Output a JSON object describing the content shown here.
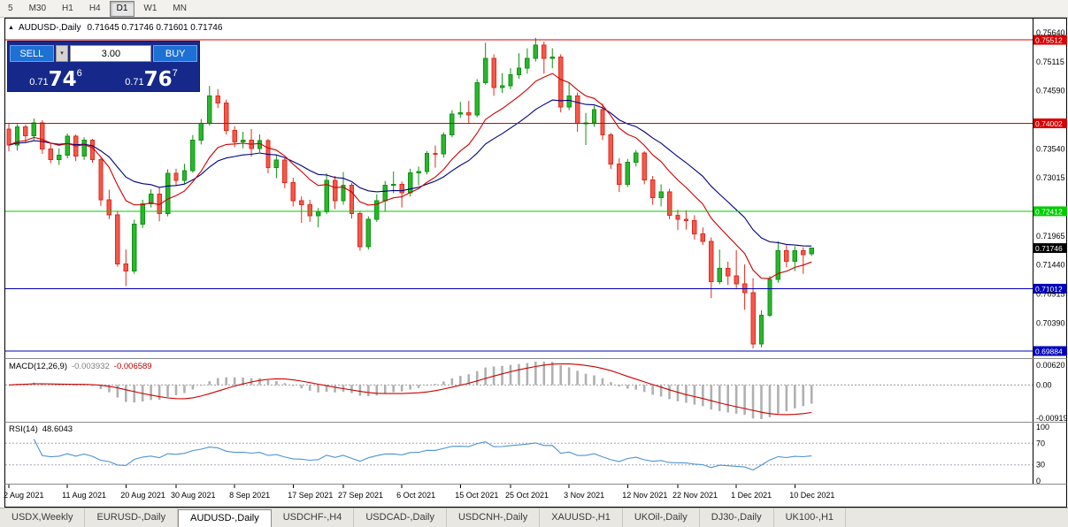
{
  "colors": {
    "up": "#0f9413",
    "up_fill": "#2cb52f",
    "down": "#dd2c1f",
    "down_fill": "#f4594d",
    "ma_fast": "#cc0000",
    "ma_slow": "#000080",
    "line_red": "#d80000",
    "line_green": "#00cc00",
    "line_blue": "#0000bb",
    "tag_black": "#000000",
    "macd_hist": "#b0b0b0",
    "macd_signal": "#cc0000",
    "rsi_line": "#4f93d2",
    "panel_blue": "#16298a",
    "button_blue": "#1d70d4"
  },
  "toolbar": {
    "timeframes": [
      "5",
      "M30",
      "H1",
      "H4",
      "D1",
      "W1",
      "MN"
    ],
    "active": "D1"
  },
  "chart": {
    "collapse_icon": "▲",
    "symbol_label": "AUDUSD-,Daily",
    "ohlc": "0.71645 0.71746 0.71601 0.71746"
  },
  "trade_panel": {
    "sell_label": "SELL",
    "buy_label": "BUY",
    "volume": "3.00",
    "dropdown_icon": "▾",
    "sell_price": {
      "prefix": "0.71",
      "big": "74",
      "sup": "6"
    },
    "buy_price": {
      "prefix": "0.71",
      "big": "76",
      "sup": "7"
    }
  },
  "price_axis": {
    "labels": [
      "0.75640",
      "0.75115",
      "0.74590",
      "0.73540",
      "0.73015",
      "0.71965",
      "0.71440",
      "0.70915",
      "0.70390"
    ]
  },
  "hlines": [
    {
      "price": 0.75512,
      "label": "0.75512",
      "color": "red"
    },
    {
      "price": 0.74002,
      "label": "0.74002",
      "color": "red"
    },
    {
      "price": 0.72412,
      "label": "0.72412",
      "color": "green"
    },
    {
      "price": 0.71012,
      "label": "0.71012",
      "color": "blue"
    },
    {
      "price": 0.69884,
      "label": "0.69884",
      "color": "blue"
    }
  ],
  "current_price_tag": {
    "price": 0.71746,
    "label": "0.71746"
  },
  "macd_panel": {
    "name": "MACD(12,26,9)",
    "value_main": "-0.003932",
    "value_signal": "-0.006589",
    "axis_top": "0.00620",
    "axis_zero": "0.00",
    "axis_bottom": "-0.00919"
  },
  "rsi_panel": {
    "name": "RSI(14)",
    "value": "48.6043",
    "axis": [
      "100",
      "70",
      "30",
      "0"
    ],
    "levels": [
      70,
      30
    ]
  },
  "date_axis": [
    {
      "label": "2 Aug 2021",
      "index": 0
    },
    {
      "label": "11 Aug 2021",
      "index": 7
    },
    {
      "label": "20 Aug 2021",
      "index": 14
    },
    {
      "label": "30 Aug 2021",
      "index": 20
    },
    {
      "label": "8 Sep 2021",
      "index": 27
    },
    {
      "label": "17 Sep 2021",
      "index": 34
    },
    {
      "label": "27 Sep 2021",
      "index": 40
    },
    {
      "label": "6 Oct 2021",
      "index": 47
    },
    {
      "label": "15 Oct 2021",
      "index": 54
    },
    {
      "label": "25 Oct 2021",
      "index": 60
    },
    {
      "label": "3 Nov 2021",
      "index": 67
    },
    {
      "label": "12 Nov 2021",
      "index": 74
    },
    {
      "label": "22 Nov 2021",
      "index": 80
    },
    {
      "label": "1 Dec 2021",
      "index": 87
    },
    {
      "label": "10 Dec 2021",
      "index": 94
    }
  ],
  "bottom_tabs": {
    "active": "AUDUSD-,Daily",
    "tabs": [
      "USDX,Weekly",
      "EURUSD-,Daily",
      "AUDUSD-,Daily",
      "USDCHF-,H4",
      "USDCAD-,Daily",
      "USDCNH-,Daily",
      "XAUUSD-,H1",
      "UKOil-,Daily",
      "DJ30-,Daily",
      "UK100-,H1"
    ]
  },
  "chart_data": {
    "type": "candlestick",
    "title": "AUDUSD-,Daily",
    "ylim": [
      0.69772,
      0.75785
    ],
    "ohlc": [
      [
        0.739,
        0.74,
        0.735,
        0.7361
      ],
      [
        0.7361,
        0.7399,
        0.7351,
        0.7394
      ],
      [
        0.7394,
        0.7398,
        0.7365,
        0.7378
      ],
      [
        0.7378,
        0.7409,
        0.737,
        0.7401
      ],
      [
        0.7401,
        0.7406,
        0.7345,
        0.7354
      ],
      [
        0.7354,
        0.7364,
        0.7328,
        0.7335
      ],
      [
        0.7335,
        0.7355,
        0.7325,
        0.7343
      ],
      [
        0.7343,
        0.7382,
        0.7337,
        0.7377
      ],
      [
        0.7377,
        0.738,
        0.7332,
        0.7341
      ],
      [
        0.7341,
        0.7375,
        0.7334,
        0.737
      ],
      [
        0.737,
        0.7372,
        0.7329,
        0.7335
      ],
      [
        0.7335,
        0.7338,
        0.7251,
        0.7262
      ],
      [
        0.7262,
        0.728,
        0.7227,
        0.7235
      ],
      [
        0.7235,
        0.7242,
        0.7141,
        0.7146
      ],
      [
        0.7146,
        0.7172,
        0.7106,
        0.7133
      ],
      [
        0.7133,
        0.7226,
        0.7128,
        0.7218
      ],
      [
        0.7218,
        0.7262,
        0.7211,
        0.7255
      ],
      [
        0.7255,
        0.7281,
        0.7248,
        0.7272
      ],
      [
        0.7272,
        0.7284,
        0.7223,
        0.7237
      ],
      [
        0.7237,
        0.7317,
        0.7232,
        0.731
      ],
      [
        0.731,
        0.7318,
        0.7288,
        0.7297
      ],
      [
        0.7297,
        0.7327,
        0.7291,
        0.7315
      ],
      [
        0.7315,
        0.7379,
        0.7311,
        0.737
      ],
      [
        0.737,
        0.7408,
        0.7362,
        0.74
      ],
      [
        0.74,
        0.7468,
        0.7396,
        0.745
      ],
      [
        0.745,
        0.7462,
        0.7428,
        0.7437
      ],
      [
        0.7437,
        0.7443,
        0.738,
        0.7387
      ],
      [
        0.7387,
        0.7395,
        0.7357,
        0.7367
      ],
      [
        0.7367,
        0.7385,
        0.7355,
        0.737
      ],
      [
        0.737,
        0.739,
        0.734,
        0.7355
      ],
      [
        0.7355,
        0.738,
        0.7348,
        0.7369
      ],
      [
        0.7369,
        0.7372,
        0.731,
        0.732
      ],
      [
        0.732,
        0.7343,
        0.7301,
        0.7334
      ],
      [
        0.7334,
        0.7337,
        0.7283,
        0.7293
      ],
      [
        0.7293,
        0.7302,
        0.725,
        0.726
      ],
      [
        0.726,
        0.7268,
        0.722,
        0.7253
      ],
      [
        0.7253,
        0.7262,
        0.7222,
        0.7233
      ],
      [
        0.7233,
        0.7247,
        0.7212,
        0.724
      ],
      [
        0.724,
        0.731,
        0.7236,
        0.7297
      ],
      [
        0.7297,
        0.7305,
        0.7245,
        0.726
      ],
      [
        0.726,
        0.7312,
        0.7253,
        0.7288
      ],
      [
        0.7288,
        0.7292,
        0.7228,
        0.7237
      ],
      [
        0.7237,
        0.7242,
        0.717,
        0.7177
      ],
      [
        0.7177,
        0.7232,
        0.7172,
        0.7227
      ],
      [
        0.7227,
        0.7272,
        0.7222,
        0.726
      ],
      [
        0.726,
        0.7296,
        0.724,
        0.7288
      ],
      [
        0.7288,
        0.7313,
        0.7274,
        0.729
      ],
      [
        0.729,
        0.7295,
        0.7248,
        0.7275
      ],
      [
        0.7275,
        0.7318,
        0.7268,
        0.7311
      ],
      [
        0.7311,
        0.7322,
        0.7288,
        0.7313
      ],
      [
        0.7313,
        0.735,
        0.7308,
        0.7346
      ],
      [
        0.7346,
        0.736,
        0.732,
        0.7345
      ],
      [
        0.7345,
        0.7384,
        0.7338,
        0.7379
      ],
      [
        0.7379,
        0.7424,
        0.7375,
        0.7417
      ],
      [
        0.7417,
        0.7439,
        0.741,
        0.7419
      ],
      [
        0.7419,
        0.7441,
        0.74,
        0.7415
      ],
      [
        0.7415,
        0.748,
        0.7411,
        0.7474
      ],
      [
        0.7474,
        0.7546,
        0.747,
        0.7518
      ],
      [
        0.7518,
        0.7525,
        0.745,
        0.7465
      ],
      [
        0.7465,
        0.7491,
        0.7455,
        0.7468
      ],
      [
        0.7468,
        0.75,
        0.7462,
        0.7488
      ],
      [
        0.7488,
        0.7527,
        0.7481,
        0.75
      ],
      [
        0.75,
        0.7536,
        0.749,
        0.7518
      ],
      [
        0.7518,
        0.7555,
        0.7512,
        0.7542
      ],
      [
        0.7542,
        0.7548,
        0.749,
        0.7518
      ],
      [
        0.7518,
        0.7536,
        0.75,
        0.752
      ],
      [
        0.752,
        0.7525,
        0.742,
        0.743
      ],
      [
        0.743,
        0.7474,
        0.7424,
        0.745
      ],
      [
        0.745,
        0.7456,
        0.7385,
        0.74
      ],
      [
        0.74,
        0.7419,
        0.7361,
        0.7401
      ],
      [
        0.7401,
        0.7432,
        0.7394,
        0.7425
      ],
      [
        0.7425,
        0.7436,
        0.737,
        0.7379
      ],
      [
        0.7379,
        0.7383,
        0.7318,
        0.7327
      ],
      [
        0.7327,
        0.7337,
        0.7276,
        0.729
      ],
      [
        0.729,
        0.7336,
        0.7285,
        0.733
      ],
      [
        0.733,
        0.7352,
        0.7322,
        0.7347
      ],
      [
        0.7347,
        0.735,
        0.729,
        0.7298
      ],
      [
        0.7298,
        0.7305,
        0.7253,
        0.7266
      ],
      [
        0.7266,
        0.729,
        0.725,
        0.7276
      ],
      [
        0.7276,
        0.7282,
        0.7227,
        0.7234
      ],
      [
        0.7234,
        0.7244,
        0.7207,
        0.7227
      ],
      [
        0.7227,
        0.7243,
        0.7208,
        0.7224
      ],
      [
        0.7224,
        0.7234,
        0.719,
        0.72
      ],
      [
        0.72,
        0.7212,
        0.718,
        0.7187
      ],
      [
        0.7187,
        0.7194,
        0.7084,
        0.7114
      ],
      [
        0.7114,
        0.7172,
        0.7109,
        0.7138
      ],
      [
        0.7138,
        0.715,
        0.7108,
        0.7124
      ],
      [
        0.7124,
        0.7171,
        0.71,
        0.711
      ],
      [
        0.711,
        0.7145,
        0.7063,
        0.7094
      ],
      [
        0.7094,
        0.712,
        0.6993,
        0.7001
      ],
      [
        0.7001,
        0.7062,
        0.6995,
        0.7053
      ],
      [
        0.7053,
        0.7124,
        0.705,
        0.7118
      ],
      [
        0.7118,
        0.7187,
        0.7112,
        0.717
      ],
      [
        0.717,
        0.718,
        0.714,
        0.7151
      ],
      [
        0.7151,
        0.7178,
        0.7133,
        0.717
      ],
      [
        0.717,
        0.7176,
        0.7128,
        0.7163
      ],
      [
        0.71645,
        0.71746,
        0.71601,
        0.71746
      ]
    ]
  }
}
